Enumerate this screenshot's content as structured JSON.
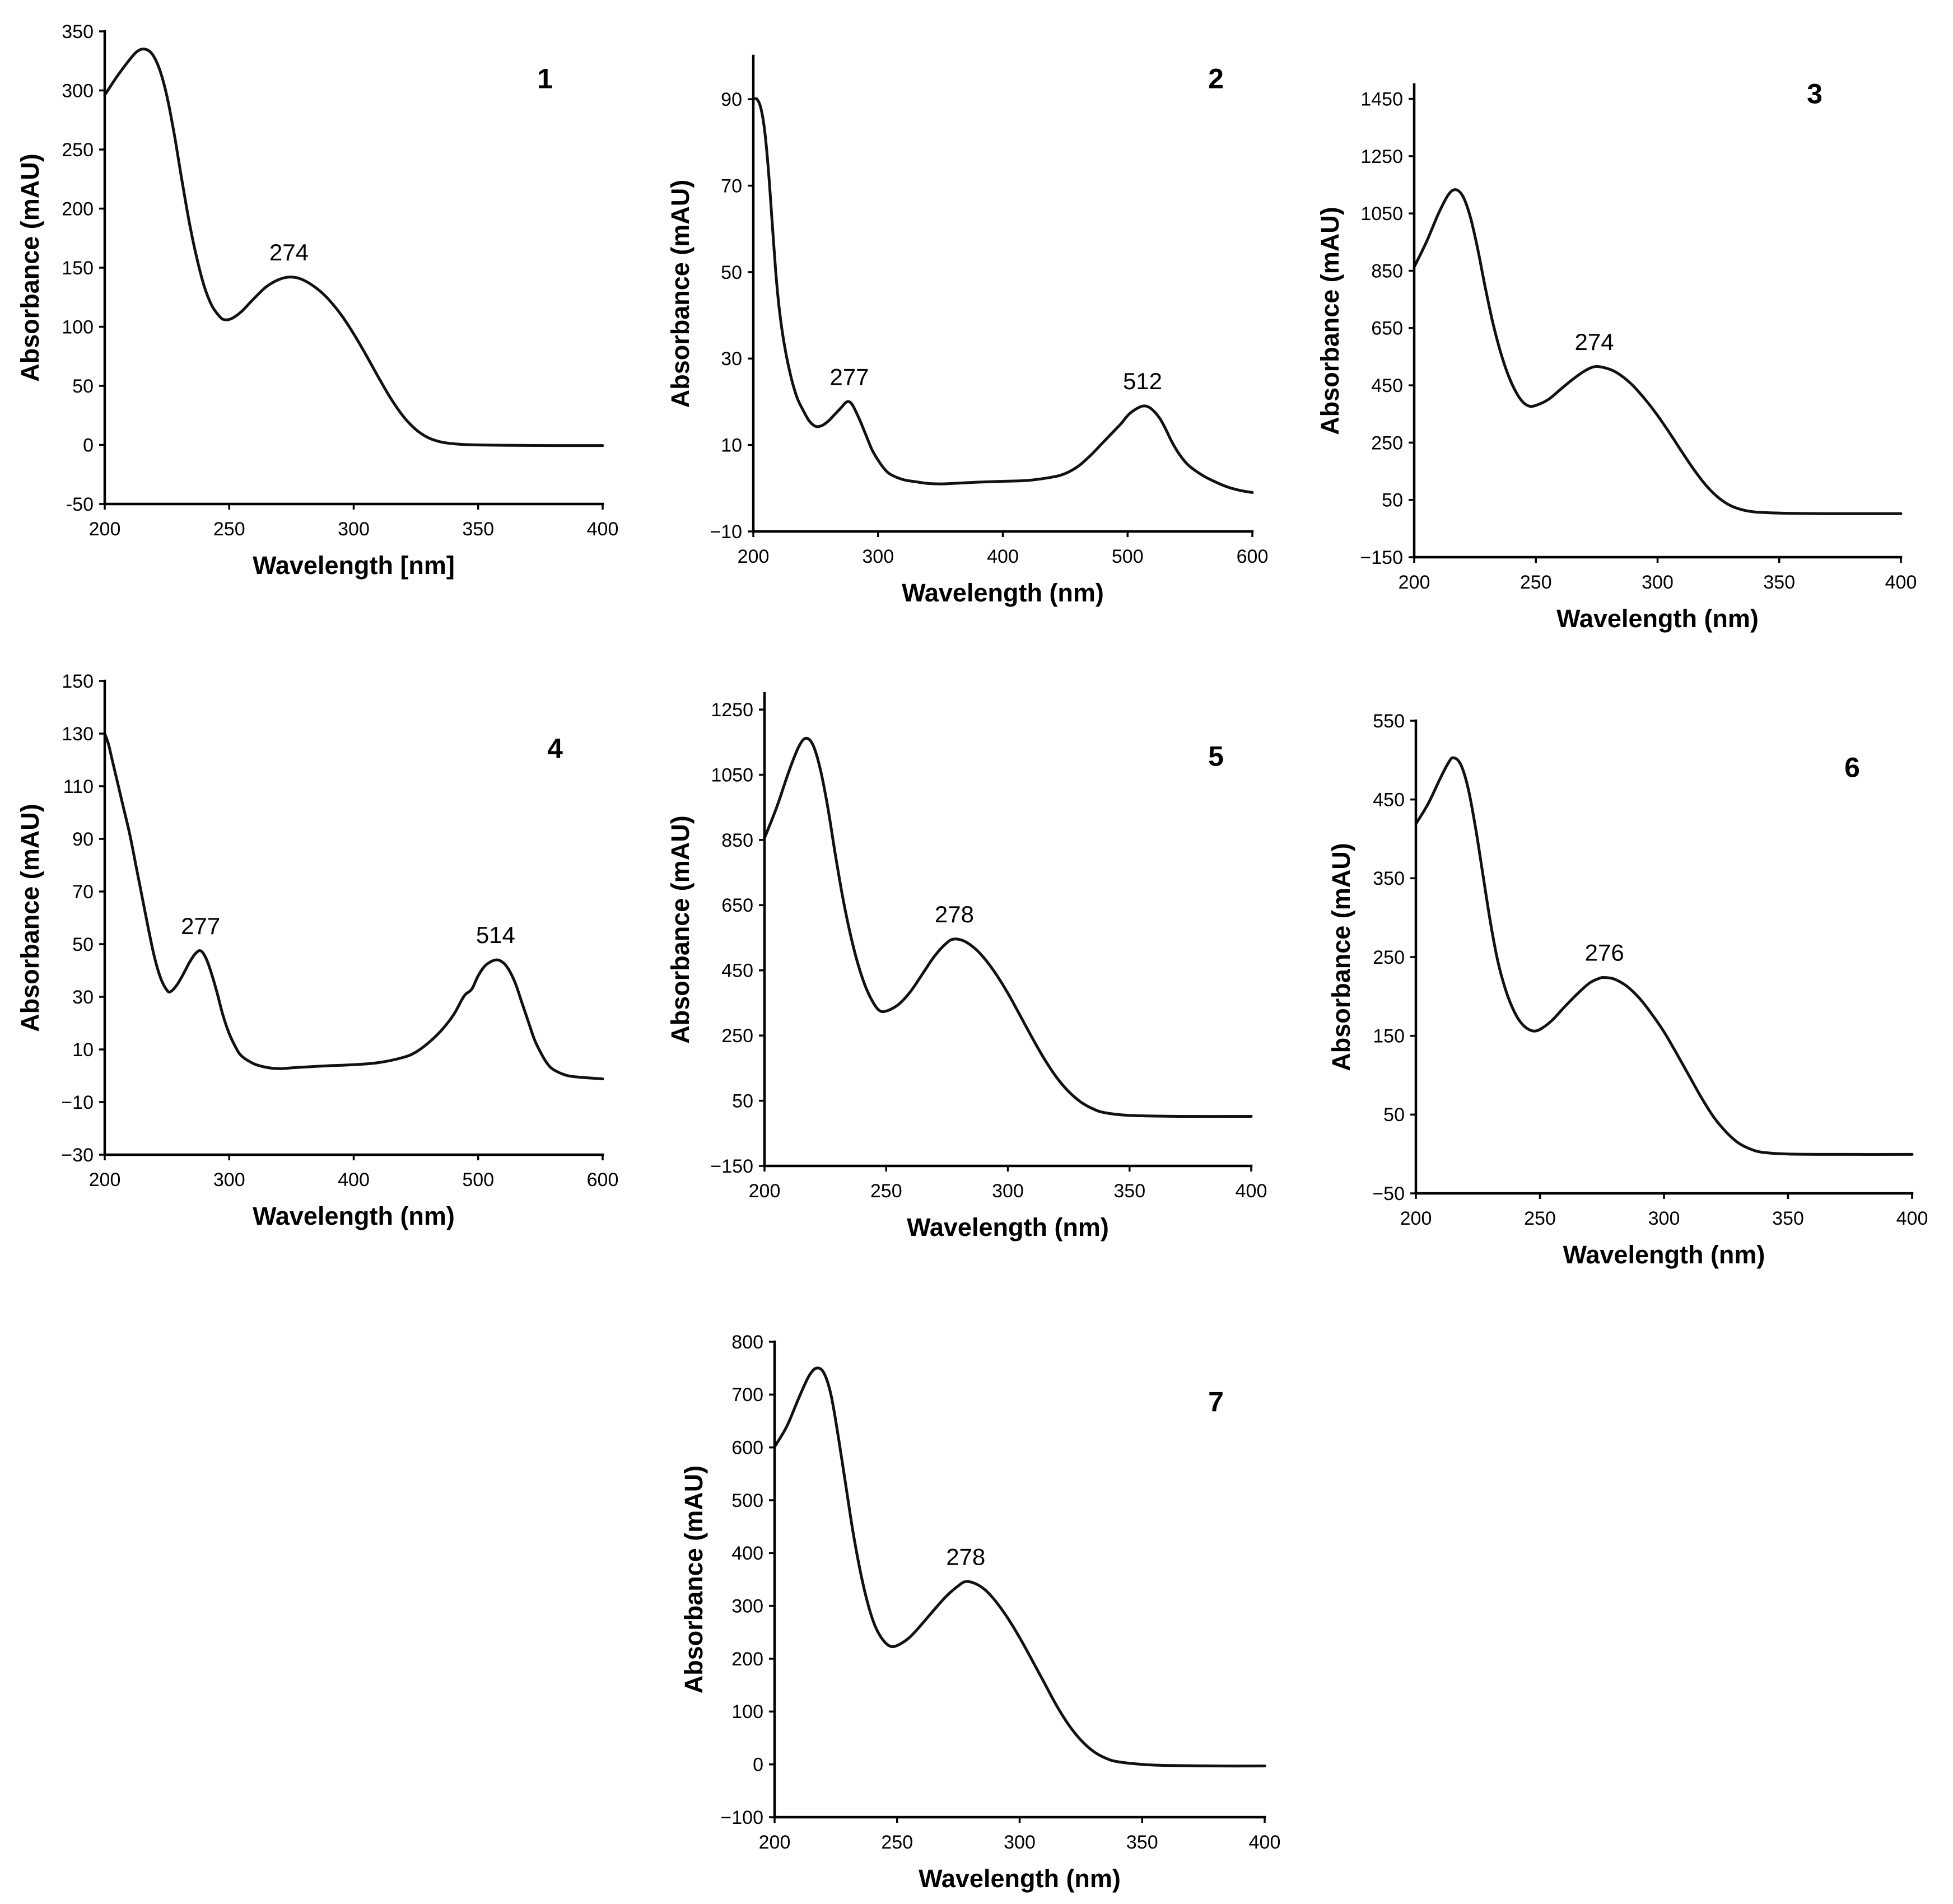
{
  "chart_data": [
    {
      "type": "line",
      "panel_label": "1",
      "xlabel": "Wavelength [nm]",
      "ylabel": "Absorbance (mAU)",
      "xlim": [
        200,
        400
      ],
      "ylim": [
        -50,
        350
      ],
      "xticks": [
        200,
        250,
        300,
        350,
        400
      ],
      "xtick_labels": [
        "200",
        "250",
        "300",
        "350",
        "400"
      ],
      "yticks": [
        350,
        300,
        250,
        200,
        150,
        100,
        50,
        0,
        -50
      ],
      "ytick_labels": [
        "350",
        "300",
        "250",
        "200",
        "150",
        "100",
        "50",
        "0",
        "-50"
      ],
      "annotations": [
        {
          "text": "274",
          "x": 274,
          "y": 142
        }
      ],
      "series": [
        {
          "x": [
            200,
            205,
            210,
            213,
            216,
            219,
            222,
            225,
            228,
            231,
            234,
            237,
            240,
            243,
            246,
            248,
            251,
            255,
            260,
            265,
            270,
            274,
            278,
            282,
            286,
            290,
            295,
            300,
            305,
            310,
            315,
            320,
            325,
            330,
            335,
            340,
            345,
            350,
            360,
            380,
            400
          ],
          "y": [
            296,
            312,
            326,
            333,
            335,
            331,
            318,
            295,
            262,
            224,
            188,
            158,
            134,
            118,
            109,
            106,
            107,
            113,
            124,
            134,
            140,
            142,
            141,
            137,
            131,
            123,
            110,
            94,
            76,
            57,
            39,
            24,
            13,
            6,
            2.5,
            1,
            0.3,
            0,
            -0.3,
            -0.5,
            -0.5
          ]
        }
      ]
    },
    {
      "type": "line",
      "panel_label": "2",
      "xlabel": "Wavelength (nm)",
      "ylabel": "Absorbance (mAU)",
      "xlim": [
        200,
        600
      ],
      "ylim": [
        -10,
        100
      ],
      "xticks": [
        200,
        300,
        400,
        500,
        600
      ],
      "xtick_labels": [
        "200",
        "300",
        "400",
        "500",
        "600"
      ],
      "yticks": [
        90,
        70,
        50,
        30,
        10,
        -10
      ],
      "ytick_labels": [
        "90",
        "70",
        "50",
        "30",
        "10",
        "−10"
      ],
      "annotations": [
        {
          "text": "277",
          "x": 277,
          "y": 20
        },
        {
          "text": "512",
          "x": 512,
          "y": 19
        }
      ],
      "series": [
        {
          "x": [
            200,
            203,
            206,
            209,
            212,
            215,
            218,
            221,
            225,
            230,
            235,
            240,
            245,
            250,
            255,
            260,
            265,
            270,
            274,
            277,
            280,
            285,
            290,
            295,
            300,
            305,
            310,
            320,
            330,
            340,
            350,
            360,
            380,
            400,
            420,
            440,
            450,
            460,
            470,
            480,
            490,
            495,
            500,
            505,
            512,
            518,
            525,
            530,
            535,
            540,
            545,
            550,
            560,
            570,
            580,
            590,
            600
          ],
          "y": [
            90,
            90,
            88,
            83,
            74,
            62,
            50,
            41,
            33,
            26,
            21,
            18,
            15.5,
            14.3,
            14.5,
            15.5,
            17,
            18.5,
            19.8,
            20,
            19,
            16,
            12.5,
            9,
            6.5,
            4.5,
            3.2,
            2,
            1.5,
            1.1,
            1,
            1.1,
            1.4,
            1.6,
            1.8,
            2.6,
            3.4,
            5,
            7.5,
            10.5,
            13.5,
            15,
            16.8,
            18,
            19,
            18.6,
            16.5,
            14,
            11,
            8.5,
            6.5,
            5,
            3,
            1.5,
            0.3,
            -0.5,
            -1
          ]
        }
      ]
    },
    {
      "type": "line",
      "panel_label": "3",
      "xlabel": "Wavelength (nm)",
      "ylabel": "Absorbance (mAU)",
      "xlim": [
        200,
        400
      ],
      "ylim": [
        -150,
        1500
      ],
      "xticks": [
        200,
        250,
        300,
        350,
        400
      ],
      "xtick_labels": [
        "200",
        "250",
        "300",
        "350",
        "400"
      ],
      "yticks": [
        1450,
        1250,
        1050,
        850,
        650,
        450,
        250,
        50,
        -150
      ],
      "ytick_labels": [
        "1450",
        "1250",
        "1050",
        "850",
        "650",
        "450",
        "250",
        "50",
        "−150"
      ],
      "annotations": [
        {
          "text": "274",
          "x": 274,
          "y": 515
        }
      ],
      "series": [
        {
          "x": [
            200,
            205,
            210,
            214,
            217,
            220,
            223,
            226,
            229,
            232,
            235,
            238,
            241,
            244,
            247,
            250,
            255,
            260,
            265,
            270,
            274,
            278,
            282,
            286,
            290,
            295,
            300,
            305,
            310,
            315,
            320,
            325,
            330,
            335,
            340,
            350,
            370,
            400
          ],
          "y": [
            863,
            950,
            1050,
            1115,
            1133,
            1110,
            1040,
            930,
            800,
            680,
            580,
            500,
            440,
            398,
            378,
            380,
            400,
            435,
            470,
            500,
            515,
            512,
            500,
            478,
            448,
            400,
            345,
            283,
            218,
            155,
            100,
            58,
            30,
            15,
            8,
            4,
            2,
            2
          ]
        }
      ]
    },
    {
      "type": "line",
      "panel_label": "4",
      "xlabel": "Wavelength (nm)",
      "ylabel": "Absorbance (mAU)",
      "xlim": [
        200,
        600
      ],
      "ylim": [
        -30,
        150
      ],
      "xticks": [
        200,
        300,
        400,
        500,
        600
      ],
      "xtick_labels": [
        "200",
        "300",
        "400",
        "500",
        "600"
      ],
      "yticks": [
        150,
        130,
        110,
        90,
        70,
        50,
        30,
        10,
        -10,
        -30
      ],
      "ytick_labels": [
        "150",
        "130",
        "110",
        "90",
        "70",
        "50",
        "30",
        "10",
        "−10",
        "−30"
      ],
      "annotations": [
        {
          "text": "277",
          "x": 277,
          "y": 47.5
        },
        {
          "text": "514",
          "x": 514,
          "y": 44
        }
      ],
      "series": [
        {
          "x": [
            200,
            203,
            206,
            210,
            215,
            220,
            225,
            230,
            235,
            240,
            245,
            250,
            253,
            258,
            263,
            268,
            273,
            277,
            281,
            285,
            290,
            295,
            300,
            305,
            310,
            320,
            330,
            340,
            350,
            360,
            380,
            400,
            420,
            440,
            450,
            460,
            470,
            480,
            487,
            490,
            495,
            500,
            506,
            514,
            520,
            525,
            530,
            535,
            540,
            545,
            550,
            555,
            560,
            570,
            580,
            600
          ],
          "y": [
            130,
            126,
            120,
            112,
            102,
            92,
            80,
            68,
            56,
            45,
            37,
            32.5,
            32,
            34.5,
            38.5,
            43,
            46.5,
            47.5,
            45,
            40,
            32,
            23,
            16,
            11,
            7.5,
            4.5,
            3.2,
            2.7,
            3,
            3.3,
            3.8,
            4.2,
            5,
            7,
            9,
            12.5,
            17,
            23,
            29,
            31,
            33,
            38,
            42,
            44,
            43,
            40,
            35,
            28,
            21,
            14,
            9,
            5,
            2.5,
            0.3,
            -0.5,
            -1.2
          ]
        }
      ]
    },
    {
      "type": "line",
      "panel_label": "5",
      "xlabel": "Wavelength (nm)",
      "ylabel": "Absorbance (mAU)",
      "xlim": [
        200,
        400
      ],
      "ylim": [
        -150,
        1300
      ],
      "xticks": [
        200,
        250,
        300,
        350,
        400
      ],
      "xtick_labels": [
        "200",
        "250",
        "300",
        "350",
        "400"
      ],
      "yticks": [
        1250,
        1050,
        850,
        650,
        450,
        250,
        50,
        -150
      ],
      "ytick_labels": [
        "1250",
        "1050",
        "850",
        "650",
        "450",
        "250",
        "50",
        "−150"
      ],
      "annotations": [
        {
          "text": "278",
          "x": 278,
          "y": 546
        }
      ],
      "series": [
        {
          "x": [
            200,
            205,
            210,
            214,
            217,
            220,
            223,
            226,
            229,
            232,
            235,
            238,
            241,
            244,
            247,
            250,
            255,
            260,
            265,
            270,
            275,
            278,
            282,
            286,
            290,
            295,
            300,
            305,
            310,
            315,
            320,
            325,
            330,
            335,
            340,
            350,
            370,
            400
          ],
          "y": [
            856,
            950,
            1060,
            1135,
            1162,
            1140,
            1065,
            950,
            810,
            680,
            570,
            480,
            410,
            360,
            328,
            325,
            345,
            385,
            440,
            495,
            535,
            546,
            540,
            520,
            490,
            440,
            380,
            312,
            243,
            178,
            122,
            78,
            46,
            25,
            13,
            5,
            2,
            2
          ]
        }
      ]
    },
    {
      "type": "line",
      "panel_label": "6",
      "xlabel": "Wavelength (nm)",
      "ylabel": "Absorbance (mAU)",
      "xlim": [
        200,
        400
      ],
      "ylim": [
        -50,
        550
      ],
      "xticks": [
        200,
        250,
        300,
        350,
        400
      ],
      "xtick_labels": [
        "200",
        "250",
        "300",
        "350",
        "400"
      ],
      "yticks": [
        550,
        450,
        350,
        250,
        150,
        50,
        -50
      ],
      "ytick_labels": [
        "550",
        "450",
        "350",
        "250",
        "150",
        "50",
        "−50"
      ],
      "annotations": [
        {
          "text": "276",
          "x": 276,
          "y": 224
        }
      ],
      "series": [
        {
          "x": [
            200,
            205,
            210,
            213,
            215,
            218,
            221,
            224,
            227,
            230,
            233,
            236,
            239,
            242,
            245,
            248,
            251,
            255,
            260,
            265,
            270,
            274,
            276,
            280,
            285,
            290,
            295,
            300,
            305,
            310,
            315,
            320,
            325,
            330,
            335,
            340,
            350,
            370,
            400
          ],
          "y": [
            419,
            445,
            478,
            496,
            503,
            495,
            465,
            415,
            355,
            295,
            245,
            210,
            185,
            168,
            159,
            156,
            160,
            170,
            187,
            203,
            217,
            223,
            224,
            222,
            213,
            198,
            178,
            155,
            128,
            100,
            72,
            47,
            28,
            14,
            6,
            2,
            0,
            -0.5,
            -0.5
          ]
        }
      ]
    },
    {
      "type": "line",
      "panel_label": "7",
      "xlabel": "Wavelength (nm)",
      "ylabel": "Absorbance (mAU)",
      "xlim": [
        200,
        400
      ],
      "ylim": [
        -100,
        800
      ],
      "xticks": [
        200,
        250,
        300,
        350,
        400
      ],
      "xtick_labels": [
        "200",
        "250",
        "300",
        "350",
        "400"
      ],
      "yticks": [
        800,
        700,
        600,
        500,
        400,
        300,
        200,
        100,
        0,
        -100
      ],
      "ytick_labels": [
        "800",
        "700",
        "600",
        "500",
        "400",
        "300",
        "200",
        "100",
        "0",
        "−100"
      ],
      "annotations": [
        {
          "text": "278",
          "x": 278,
          "y": 346
        }
      ],
      "series": [
        {
          "x": [
            200,
            205,
            210,
            214,
            217,
            220,
            223,
            226,
            229,
            232,
            235,
            238,
            241,
            244,
            247,
            250,
            255,
            260,
            265,
            270,
            275,
            278,
            282,
            286,
            290,
            295,
            300,
            305,
            310,
            315,
            320,
            325,
            330,
            335,
            340,
            350,
            360,
            380,
            400
          ],
          "y": [
            601,
            640,
            695,
            735,
            750,
            742,
            700,
            620,
            530,
            440,
            365,
            305,
            262,
            237,
            224,
            225,
            240,
            265,
            292,
            318,
            338,
            346,
            342,
            330,
            310,
            278,
            240,
            198,
            155,
            112,
            75,
            46,
            25,
            12,
            5,
            0,
            -2,
            -3,
            -3
          ]
        }
      ]
    }
  ]
}
